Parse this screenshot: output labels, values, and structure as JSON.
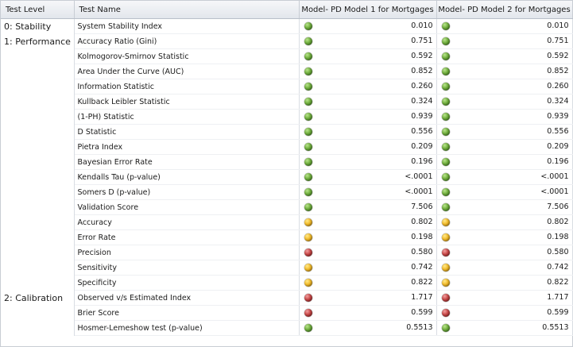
{
  "headers": {
    "level": "Test Level",
    "name": "Test Name",
    "model1": "Model- PD Model 1 for Mortgages",
    "model2": "Model- PD Model 2 for Mortgages"
  },
  "status_colors": {
    "green": "#6fae3c",
    "yellow": "#f2bb2a",
    "red": "#c84747"
  },
  "rows": [
    {
      "level": "0: Stability",
      "name": "System Stability Index",
      "m1": {
        "status": "green",
        "value": "0.010"
      },
      "m2": {
        "status": "green",
        "value": "0.010"
      }
    },
    {
      "level": "1: Performance",
      "name": "Accuracy Ratio (Gini)",
      "m1": {
        "status": "green",
        "value": "0.751"
      },
      "m2": {
        "status": "green",
        "value": "0.751"
      }
    },
    {
      "level": "",
      "name": "Kolmogorov-Smirnov Statistic",
      "m1": {
        "status": "green",
        "value": "0.592"
      },
      "m2": {
        "status": "green",
        "value": "0.592"
      }
    },
    {
      "level": "",
      "name": "Area Under the Curve (AUC)",
      "m1": {
        "status": "green",
        "value": "0.852"
      },
      "m2": {
        "status": "green",
        "value": "0.852"
      }
    },
    {
      "level": "",
      "name": "Information Statistic",
      "m1": {
        "status": "green",
        "value": "0.260"
      },
      "m2": {
        "status": "green",
        "value": "0.260"
      }
    },
    {
      "level": "",
      "name": "Kullback Leibler Statistic",
      "m1": {
        "status": "green",
        "value": "0.324"
      },
      "m2": {
        "status": "green",
        "value": "0.324"
      }
    },
    {
      "level": "",
      "name": "(1-PH) Statistic",
      "m1": {
        "status": "green",
        "value": "0.939"
      },
      "m2": {
        "status": "green",
        "value": "0.939"
      }
    },
    {
      "level": "",
      "name": "D Statistic",
      "m1": {
        "status": "green",
        "value": "0.556"
      },
      "m2": {
        "status": "green",
        "value": "0.556"
      }
    },
    {
      "level": "",
      "name": "Pietra Index",
      "m1": {
        "status": "green",
        "value": "0.209"
      },
      "m2": {
        "status": "green",
        "value": "0.209"
      }
    },
    {
      "level": "",
      "name": "Bayesian Error Rate",
      "m1": {
        "status": "green",
        "value": "0.196"
      },
      "m2": {
        "status": "green",
        "value": "0.196"
      }
    },
    {
      "level": "",
      "name": "Kendalls Tau (p-value)",
      "m1": {
        "status": "green",
        "value": "<.0001"
      },
      "m2": {
        "status": "green",
        "value": "<.0001"
      }
    },
    {
      "level": "",
      "name": "Somers D (p-value)",
      "m1": {
        "status": "green",
        "value": "<.0001"
      },
      "m2": {
        "status": "green",
        "value": "<.0001"
      }
    },
    {
      "level": "",
      "name": "Validation Score",
      "m1": {
        "status": "green",
        "value": "7.506"
      },
      "m2": {
        "status": "green",
        "value": "7.506"
      }
    },
    {
      "level": "",
      "name": "Accuracy",
      "m1": {
        "status": "yellow",
        "value": "0.802"
      },
      "m2": {
        "status": "yellow",
        "value": "0.802"
      }
    },
    {
      "level": "",
      "name": "Error Rate",
      "m1": {
        "status": "yellow",
        "value": "0.198"
      },
      "m2": {
        "status": "yellow",
        "value": "0.198"
      }
    },
    {
      "level": "",
      "name": "Precision",
      "m1": {
        "status": "red",
        "value": "0.580"
      },
      "m2": {
        "status": "red",
        "value": "0.580"
      }
    },
    {
      "level": "",
      "name": "Sensitivity",
      "m1": {
        "status": "yellow",
        "value": "0.742"
      },
      "m2": {
        "status": "yellow",
        "value": "0.742"
      }
    },
    {
      "level": "",
      "name": "Specificity",
      "m1": {
        "status": "yellow",
        "value": "0.822"
      },
      "m2": {
        "status": "yellow",
        "value": "0.822"
      }
    },
    {
      "level": "2: Calibration",
      "name": "Observed v/s Estimated Index",
      "m1": {
        "status": "red",
        "value": "1.717"
      },
      "m2": {
        "status": "red",
        "value": "1.717"
      }
    },
    {
      "level": "",
      "name": "Brier Score",
      "m1": {
        "status": "red",
        "value": "0.599"
      },
      "m2": {
        "status": "red",
        "value": "0.599"
      }
    },
    {
      "level": "",
      "name": "Hosmer-Lemeshow test (p-value)",
      "m1": {
        "status": "green",
        "value": "0.5513"
      },
      "m2": {
        "status": "green",
        "value": "0.5513"
      }
    }
  ]
}
